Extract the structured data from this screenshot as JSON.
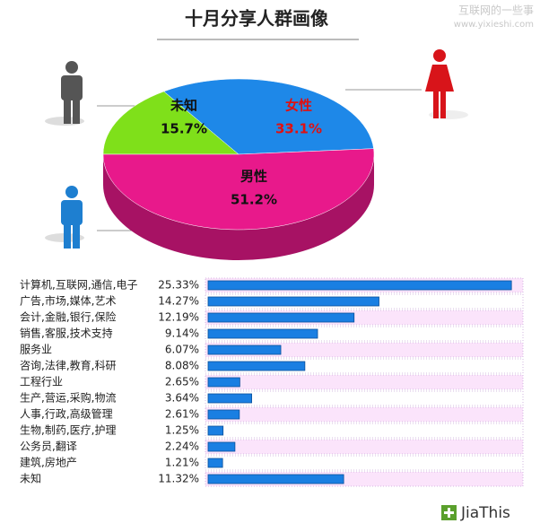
{
  "watermark": {
    "title": "互联网的一些事",
    "url": "www.yixieshi.com"
  },
  "logo": "JiaThis",
  "chart_data": [
    {
      "type": "pie",
      "title": "十月分享人群画像",
      "categories": [
        "未知",
        "女性",
        "男性"
      ],
      "values": [
        15.7,
        33.1,
        51.2
      ],
      "value_labels": [
        "15.7%",
        "33.1%",
        "51.2%"
      ],
      "colors": [
        "#7fe01a",
        "#1e88e8",
        "#e8198b"
      ],
      "label_colors": [
        "#111111",
        "#e01010",
        "#111111"
      ]
    },
    {
      "type": "hbar",
      "categories": [
        "计算机,互联网,通信,电子",
        "广告,市场,媒体,艺术",
        "会计,金融,银行,保险",
        "销售,客服,技术支持",
        "服务业",
        "咨询,法律,教育,科研",
        "工程行业",
        "生产,营运,采购,物流",
        "人事,行政,高级管理",
        "生物,制药,医疗,护理",
        "公务员,翻译",
        "建筑,房地产",
        "未知"
      ],
      "values": [
        25.33,
        14.27,
        12.19,
        9.14,
        6.07,
        8.08,
        2.65,
        3.64,
        2.61,
        1.25,
        2.24,
        1.21,
        11.32
      ],
      "value_labels": [
        "25.33%",
        "14.27%",
        "12.19%",
        "9.14%",
        "6.07%",
        "8.08%",
        "2.65%",
        "3.64%",
        "2.61%",
        "1.25%",
        "2.24%",
        "1.21%",
        "11.32%"
      ],
      "color": "#1a7fe2"
    }
  ]
}
